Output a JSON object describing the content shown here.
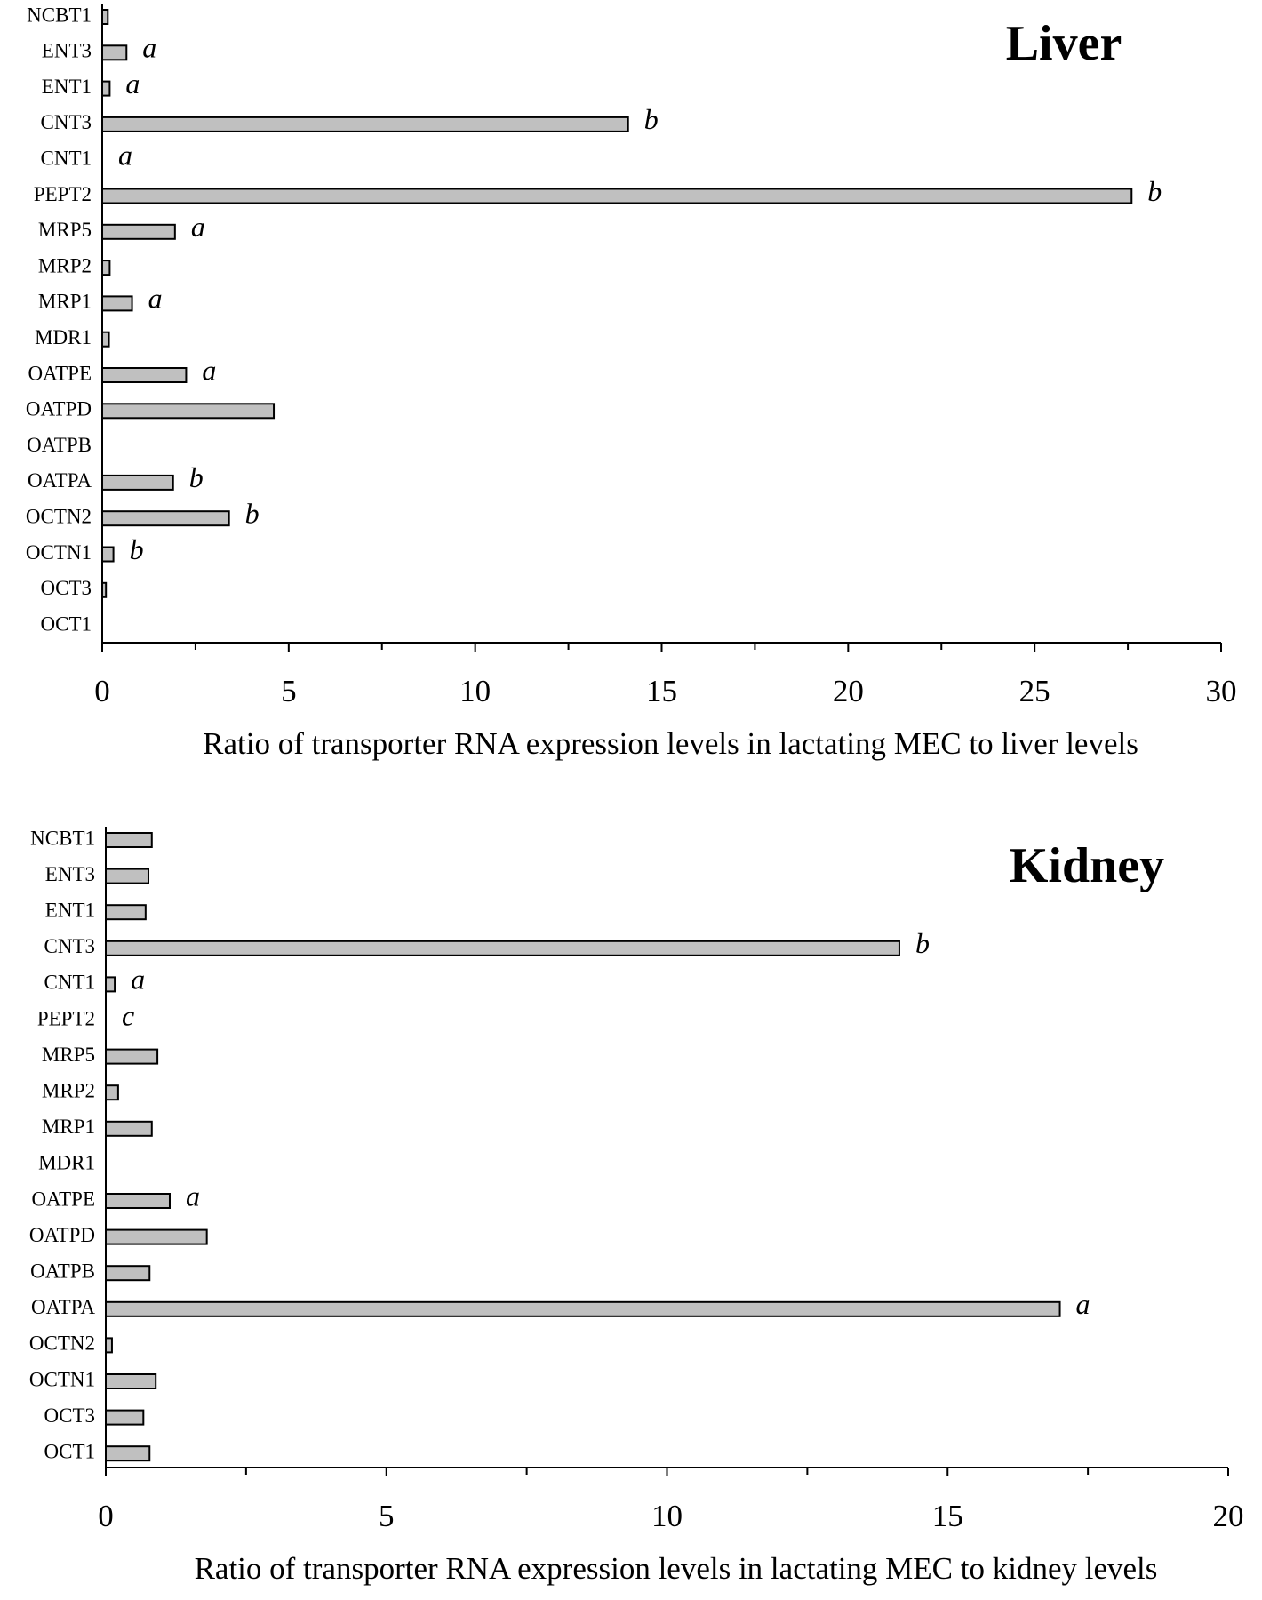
{
  "chart_data": [
    {
      "type": "bar",
      "orientation": "horizontal",
      "title": "Liver",
      "x_label": "Ratio of transporter RNA expression levels in lactating MEC to liver levels",
      "categories": [
        "NCBT1",
        "ENT3",
        "ENT1",
        "CNT3",
        "CNT1",
        "PEPT2",
        "MRP5",
        "MRP2",
        "MRP1",
        "MDR1",
        "OATPE",
        "OATPD",
        "OATPB",
        "OATPA",
        "OCTN2",
        "OCTN1",
        "OCT3",
        "OCT1"
      ],
      "values": [
        0.15,
        0.65,
        0.2,
        14.1,
        0,
        27.6,
        1.95,
        0.2,
        0.8,
        0.18,
        2.25,
        4.6,
        0,
        1.9,
        3.4,
        0.3,
        0.1,
        0
      ],
      "annotations": [
        null,
        "a",
        "a",
        "b",
        "a",
        "b",
        "a",
        null,
        "a",
        null,
        "a",
        null,
        null,
        "b",
        "b",
        "b",
        null,
        null
      ],
      "color": "#c0c0c0",
      "xlim": [
        0,
        30
      ],
      "xticks": [
        0,
        5,
        10,
        15,
        20,
        25,
        30
      ],
      "xminor_ticks": [
        2.5,
        7.5,
        12.5,
        17.5,
        22.5,
        27.5
      ]
    },
    {
      "type": "bar",
      "orientation": "horizontal",
      "title": "Kidney",
      "x_label": "Ratio of transporter RNA expression levels in lactating MEC to kidney levels",
      "categories": [
        "NCBT1",
        "ENT3",
        "ENT1",
        "CNT3",
        "CNT1",
        "PEPT2",
        "MRP5",
        "MRP2",
        "MRP1",
        "MDR1",
        "OATPE",
        "OATPD",
        "OATPB",
        "OATPA",
        "OCTN2",
        "OCTN1",
        "OCT3",
        "OCT1"
      ],
      "values": [
        0.82,
        0.76,
        0.71,
        14.14,
        0.16,
        0,
        0.92,
        0.22,
        0.82,
        0,
        1.14,
        1.8,
        0.78,
        17.0,
        0.11,
        0.89,
        0.67,
        0.78
      ],
      "annotations": [
        null,
        null,
        null,
        "b",
        "a",
        "c",
        null,
        null,
        null,
        null,
        "a",
        null,
        null,
        "a",
        null,
        null,
        null,
        null
      ],
      "color": "#c0c0c0",
      "xlim": [
        0,
        20
      ],
      "xticks": [
        0,
        5,
        10,
        15,
        20
      ],
      "xminor_ticks": [
        2.5,
        7.5,
        12.5,
        17.5
      ]
    }
  ]
}
